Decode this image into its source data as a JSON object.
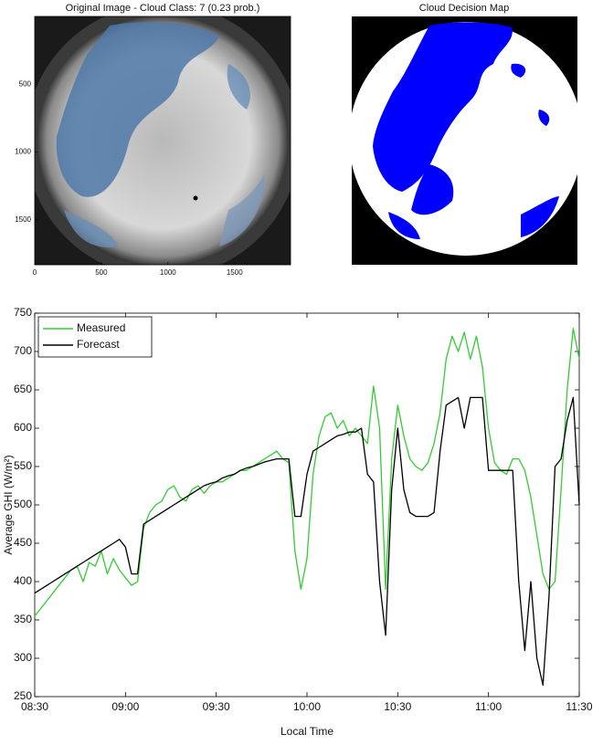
{
  "chart_data": [
    {
      "type": "image",
      "title": "Original Image - Cloud Class: 7 (0.23 prob.)",
      "xlim": [
        0,
        1920
      ],
      "ylim": [
        0,
        1830
      ],
      "yaxis_inverted": true,
      "xticks": [
        0,
        500,
        1000,
        1500
      ],
      "yticks": [
        500,
        1000,
        1500
      ]
    },
    {
      "type": "image",
      "title": "Cloud Decision Map"
    },
    {
      "type": "line",
      "xlabel": "Local Time",
      "ylabel": "Average GHI (W/m²)",
      "xlim": [
        "08:30",
        "11:30"
      ],
      "xticks": [
        "08:30",
        "09:00",
        "09:30",
        "10:00",
        "10:30",
        "11:00",
        "11:30"
      ],
      "ylim": [
        250,
        750
      ],
      "yticks": [
        250,
        300,
        350,
        400,
        450,
        500,
        550,
        600,
        650,
        700,
        750
      ],
      "legend": "upper left",
      "x": [
        "08:30",
        "08:32",
        "08:34",
        "08:36",
        "08:38",
        "08:40",
        "08:42",
        "08:44",
        "08:46",
        "08:48",
        "08:50",
        "08:52",
        "08:54",
        "08:56",
        "08:58",
        "09:00",
        "09:02",
        "09:04",
        "09:06",
        "09:08",
        "09:10",
        "09:12",
        "09:14",
        "09:16",
        "09:18",
        "09:20",
        "09:22",
        "09:24",
        "09:26",
        "09:28",
        "09:30",
        "09:32",
        "09:34",
        "09:36",
        "09:38",
        "09:40",
        "09:42",
        "09:44",
        "09:46",
        "09:48",
        "09:50",
        "09:52",
        "09:54",
        "09:56",
        "09:58",
        "10:00",
        "10:02",
        "10:04",
        "10:06",
        "10:08",
        "10:10",
        "10:12",
        "10:14",
        "10:16",
        "10:18",
        "10:20",
        "10:22",
        "10:24",
        "10:26",
        "10:28",
        "10:30",
        "10:32",
        "10:34",
        "10:36",
        "10:38",
        "10:40",
        "10:42",
        "10:44",
        "10:46",
        "10:48",
        "10:50",
        "10:52",
        "10:54",
        "10:56",
        "10:58",
        "11:00",
        "11:02",
        "11:04",
        "11:06",
        "11:08",
        "11:10",
        "11:12",
        "11:14",
        "11:16",
        "11:18",
        "11:20",
        "11:22",
        "11:24",
        "11:26",
        "11:28",
        "11:30"
      ],
      "series": [
        {
          "name": "Measured",
          "color": "#33cc33",
          "values": [
            355,
            365,
            375,
            385,
            395,
            405,
            415,
            420,
            400,
            425,
            420,
            440,
            410,
            430,
            415,
            405,
            395,
            400,
            470,
            490,
            500,
            505,
            520,
            525,
            510,
            505,
            520,
            525,
            515,
            525,
            530,
            530,
            535,
            540,
            545,
            545,
            550,
            555,
            560,
            565,
            570,
            560,
            555,
            440,
            390,
            430,
            540,
            590,
            615,
            620,
            600,
            610,
            590,
            600,
            590,
            580,
            655,
            600,
            390,
            560,
            630,
            590,
            560,
            550,
            545,
            555,
            580,
            620,
            690,
            720,
            700,
            725,
            690,
            720,
            680,
            600,
            555,
            545,
            540,
            560,
            560,
            545,
            510,
            460,
            410,
            390,
            400,
            520,
            650,
            730,
            690
          ]
        },
        {
          "name": "Forecast",
          "color": "#000000",
          "values": [
            385,
            390,
            395,
            400,
            405,
            410,
            415,
            420,
            425,
            430,
            435,
            440,
            445,
            450,
            455,
            445,
            410,
            410,
            475,
            480,
            485,
            490,
            495,
            500,
            505,
            510,
            515,
            520,
            525,
            528,
            530,
            535,
            538,
            540,
            545,
            548,
            550,
            553,
            556,
            558,
            560,
            560,
            560,
            485,
            485,
            540,
            570,
            575,
            580,
            585,
            590,
            592,
            595,
            595,
            600,
            540,
            530,
            400,
            330,
            520,
            600,
            520,
            490,
            485,
            485,
            485,
            490,
            570,
            630,
            635,
            640,
            600,
            640,
            640,
            640,
            545,
            545,
            545,
            545,
            545,
            400,
            310,
            400,
            300,
            265,
            380,
            550,
            560,
            610,
            640,
            500
          ]
        }
      ]
    }
  ]
}
